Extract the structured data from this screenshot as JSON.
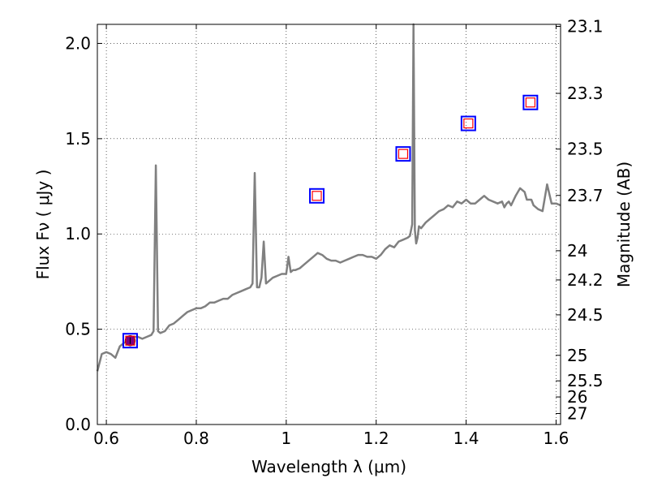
{
  "chart_data": {
    "type": "line",
    "title": "",
    "xlabel": "Wavelength  λ (μm)",
    "ylabel": "Flux  Fν  ( μJy )",
    "y2label": "Magnitude (AB)",
    "xlim": [
      0.58,
      1.61
    ],
    "ylim": [
      0.0,
      2.1
    ],
    "grid": true,
    "x_ticks": [
      0.6,
      0.8,
      1.0,
      1.2,
      1.4,
      1.6
    ],
    "x_tick_labels": [
      "0.6",
      "0.8",
      "1",
      "1.2",
      "1.4",
      "1.6"
    ],
    "y_ticks": [
      0.0,
      0.5,
      1.0,
      1.5,
      2.0
    ],
    "y_tick_labels": [
      "0.0",
      "0.5",
      "1.0",
      "1.5",
      "2.0"
    ],
    "y2_ticks": [
      "23.1",
      "23.3",
      "23.5",
      "23.7",
      "24",
      "24.2",
      "24.5",
      "25",
      "25.5",
      "26",
      "27"
    ],
    "series": [
      {
        "name": "model-spectrum",
        "color": "#808080",
        "x": [
          0.58,
          0.59,
          0.6,
          0.61,
          0.62,
          0.63,
          0.64,
          0.65,
          0.66,
          0.67,
          0.68,
          0.69,
          0.7,
          0.705,
          0.71,
          0.715,
          0.72,
          0.73,
          0.74,
          0.75,
          0.76,
          0.77,
          0.78,
          0.79,
          0.8,
          0.81,
          0.82,
          0.83,
          0.84,
          0.85,
          0.86,
          0.87,
          0.88,
          0.89,
          0.9,
          0.91,
          0.92,
          0.925,
          0.93,
          0.935,
          0.94,
          0.945,
          0.95,
          0.955,
          0.96,
          0.97,
          0.98,
          0.99,
          1.0,
          1.005,
          1.01,
          1.015,
          1.02,
          1.03,
          1.04,
          1.05,
          1.06,
          1.07,
          1.08,
          1.09,
          1.1,
          1.11,
          1.12,
          1.13,
          1.14,
          1.15,
          1.16,
          1.17,
          1.18,
          1.19,
          1.2,
          1.21,
          1.22,
          1.23,
          1.24,
          1.25,
          1.26,
          1.27,
          1.275,
          1.28,
          1.283,
          1.286,
          1.289,
          1.292,
          1.295,
          1.3,
          1.31,
          1.32,
          1.33,
          1.34,
          1.35,
          1.36,
          1.37,
          1.38,
          1.39,
          1.4,
          1.41,
          1.42,
          1.43,
          1.44,
          1.45,
          1.46,
          1.47,
          1.48,
          1.485,
          1.49,
          1.495,
          1.5,
          1.51,
          1.52,
          1.53,
          1.535,
          1.54,
          1.545,
          1.55,
          1.56,
          1.57,
          1.58,
          1.59,
          1.6,
          1.61
        ],
        "y": [
          0.28,
          0.37,
          0.38,
          0.37,
          0.35,
          0.41,
          0.43,
          0.44,
          0.46,
          0.46,
          0.45,
          0.46,
          0.47,
          0.49,
          1.36,
          0.49,
          0.48,
          0.49,
          0.52,
          0.53,
          0.55,
          0.57,
          0.59,
          0.6,
          0.61,
          0.61,
          0.62,
          0.64,
          0.64,
          0.65,
          0.66,
          0.66,
          0.68,
          0.69,
          0.7,
          0.71,
          0.72,
          0.74,
          1.32,
          0.72,
          0.72,
          0.77,
          0.96,
          0.74,
          0.75,
          0.77,
          0.78,
          0.79,
          0.79,
          0.88,
          0.8,
          0.81,
          0.81,
          0.82,
          0.84,
          0.86,
          0.88,
          0.9,
          0.89,
          0.87,
          0.86,
          0.86,
          0.85,
          0.86,
          0.87,
          0.88,
          0.89,
          0.89,
          0.88,
          0.88,
          0.87,
          0.89,
          0.92,
          0.94,
          0.93,
          0.96,
          0.97,
          0.98,
          0.99,
          1.05,
          2.1,
          1.02,
          0.95,
          0.98,
          1.04,
          1.03,
          1.06,
          1.08,
          1.1,
          1.12,
          1.13,
          1.15,
          1.14,
          1.17,
          1.16,
          1.18,
          1.16,
          1.16,
          1.18,
          1.2,
          1.18,
          1.17,
          1.16,
          1.17,
          1.14,
          1.16,
          1.17,
          1.15,
          1.2,
          1.24,
          1.22,
          1.18,
          1.18,
          1.18,
          1.15,
          1.13,
          1.12,
          1.26,
          1.16,
          1.16,
          1.15
        ]
      }
    ],
    "markers": [
      {
        "name": "photometry-point-1",
        "x": 0.653,
        "y": 0.44,
        "style": "filled-circle",
        "color": "#800080"
      },
      {
        "name": "photometry-point-2",
        "x": 1.068,
        "y": 1.2,
        "style": "squares",
        "outer_color": "#0000ff",
        "inner_color": "#ff0000"
      },
      {
        "name": "photometry-point-3",
        "x": 1.26,
        "y": 1.42,
        "style": "squares",
        "outer_color": "#0000ff",
        "inner_color": "#ff0000"
      },
      {
        "name": "photometry-point-4",
        "x": 1.405,
        "y": 1.58,
        "style": "squares",
        "outer_color": "#0000ff",
        "inner_color": "#ff0000"
      },
      {
        "name": "photometry-point-5",
        "x": 1.543,
        "y": 1.69,
        "style": "squares",
        "outer_color": "#0000ff",
        "inner_color": "#ff0000"
      },
      {
        "name": "photometry-point-0",
        "x": 0.653,
        "y": 0.44,
        "style": "squares",
        "outer_color": "#0000ff",
        "inner_color": "#ff0000"
      }
    ]
  }
}
